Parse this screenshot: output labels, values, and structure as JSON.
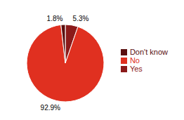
{
  "chart_data": {
    "type": "pie",
    "categories": [
      "Yes",
      "No",
      "Don't know"
    ],
    "values": [
      5.3,
      92.9,
      1.8
    ],
    "value_labels": [
      "5.3%",
      "92.9%",
      "1.8%"
    ],
    "colors": [
      "#8b1a1a",
      "#e03020",
      "#5a0f0f"
    ],
    "data_labels": true,
    "legend": "right"
  }
}
